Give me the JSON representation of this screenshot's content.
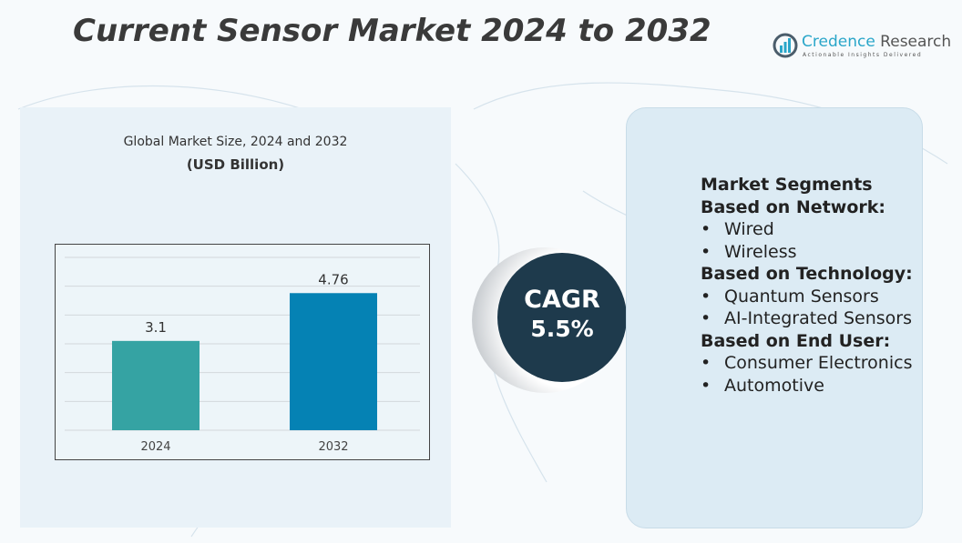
{
  "title": "Current Sensor Market 2024 to 2032",
  "logo": {
    "name_part1": "Credence",
    "name_part2": " Research",
    "tagline": "Actionable Insights Delivered",
    "color": "#2aa6c9"
  },
  "chart_data": {
    "type": "bar",
    "title": "Global Market Size, 2024 and 2032",
    "subtitle": "(USD Billion)",
    "categories": [
      "2024",
      "2032"
    ],
    "values": [
      3.1,
      4.76
    ],
    "value_labels": [
      "3.1",
      "4.76"
    ],
    "colors": [
      "#35a3a3",
      "#0582b4"
    ],
    "ylim": [
      0,
      6
    ],
    "grid": true
  },
  "cagr": {
    "label": "CAGR",
    "value": "5.5%"
  },
  "segments": {
    "heading": "Market Segments",
    "groups": [
      {
        "title": "Based on Network:",
        "items": [
          "Wired",
          "Wireless"
        ]
      },
      {
        "title": "Based on Technology:",
        "items": [
          "Quantum Sensors",
          "AI-Integrated Sensors"
        ]
      },
      {
        "title": "Based on End User:",
        "items": [
          "Consumer Electronics",
          "Automotive"
        ]
      }
    ]
  }
}
